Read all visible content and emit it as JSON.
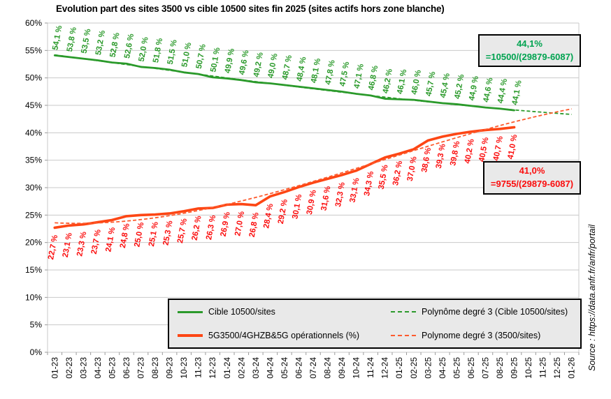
{
  "title": "Evolution part des sites 3500 vs cible 10500 sites fin 2025 (sites actifs hors zone blanche)",
  "source_note": "Source : https://data.anfr.fr/anfr/portail",
  "colors": {
    "green_line": "#2b9a2b",
    "green_label": "#2b9a2b",
    "green_annot": "#00a350",
    "red_line": "#fd4614",
    "red_dashed": "#fd5a2d",
    "red_label": "#fb0d0d",
    "grid": "#c9c9c9",
    "box_bg": "#e9e9e9",
    "axis_text": "#000000"
  },
  "annotations": {
    "green": {
      "line1": "44,1%",
      "line2": "=10500/(29879-6087)"
    },
    "red": {
      "line1": "41,0%",
      "line2": "=9755/(29879-6087)"
    }
  },
  "legend": [
    {
      "label": "Cible 10500/sites",
      "style": "solid",
      "color": "#2b9a2b",
      "thickness": 3
    },
    {
      "label": "Polynôme degré 3 (Cible 10500/sites)",
      "style": "dashed",
      "color": "#2b9a2b",
      "thickness": 2
    },
    {
      "label": "5G3500/4GHZB&5G opérationnels (%)",
      "style": "solid",
      "color": "#fd4614",
      "thickness": 4
    },
    {
      "label": "Polynome degré 3 (3500/sites)",
      "style": "dashed",
      "color": "#fd5a2d",
      "thickness": 2
    }
  ],
  "chart_data": {
    "type": "line",
    "title": "Evolution part des sites 3500 vs cible 10500 sites fin 2025 (sites actifs hors zone blanche)",
    "x": [
      "01-23",
      "02-23",
      "03-23",
      "04-23",
      "05-23",
      "06-23",
      "07-23",
      "08-23",
      "09-23",
      "10-23",
      "11-23",
      "12-23",
      "01-24",
      "02-24",
      "03-24",
      "04-24",
      "05-24",
      "06-24",
      "07-24",
      "08-24",
      "09-24",
      "10-24",
      "11-24",
      "12-24",
      "01-25",
      "02-25",
      "03-25",
      "04-25",
      "05-25",
      "06-25",
      "07-25",
      "08-25",
      "09-25",
      "10-25",
      "11-25",
      "12-25",
      "01-26"
    ],
    "ylim": [
      0,
      60
    ],
    "ytick_step": 5,
    "grid": true,
    "legend_position": "bottom",
    "series": [
      {
        "name": "Cible 10500/sites",
        "color": "#2b9a2b",
        "values": [
          54.1,
          53.8,
          53.5,
          53.2,
          52.8,
          52.6,
          52.0,
          51.8,
          51.5,
          51.0,
          50.7,
          50.1,
          49.9,
          49.6,
          49.2,
          49.0,
          48.7,
          48.4,
          48.1,
          47.8,
          47.5,
          47.1,
          46.8,
          46.2,
          46.1,
          46.0,
          45.7,
          45.4,
          45.2,
          44.9,
          44.6,
          44.4,
          44.1
        ]
      },
      {
        "name": "5G3500/4GHZB&5G opérationnels (%)",
        "color": "#fd4614",
        "values": [
          22.7,
          23.1,
          23.3,
          23.7,
          24.1,
          24.8,
          25.0,
          25.1,
          25.3,
          25.7,
          26.2,
          26.3,
          26.9,
          27.0,
          26.8,
          28.4,
          29.2,
          30.1,
          30.9,
          31.6,
          32.3,
          33.1,
          34.3,
          35.5,
          36.2,
          37.0,
          38.6,
          39.3,
          39.8,
          40.2,
          40.5,
          40.7,
          41.0
        ]
      }
    ],
    "trendlines": [
      {
        "name": "Polynôme degré 3 (Cible 10500/sites)",
        "fits_series": 0,
        "degree": 3,
        "extrapolate_to": "01-26"
      },
      {
        "name": "Polynome degré 3 (3500/sites)",
        "fits_series": 1,
        "degree": 3,
        "extrapolate_to": "01-26"
      }
    ],
    "label_format": "#,# %"
  }
}
